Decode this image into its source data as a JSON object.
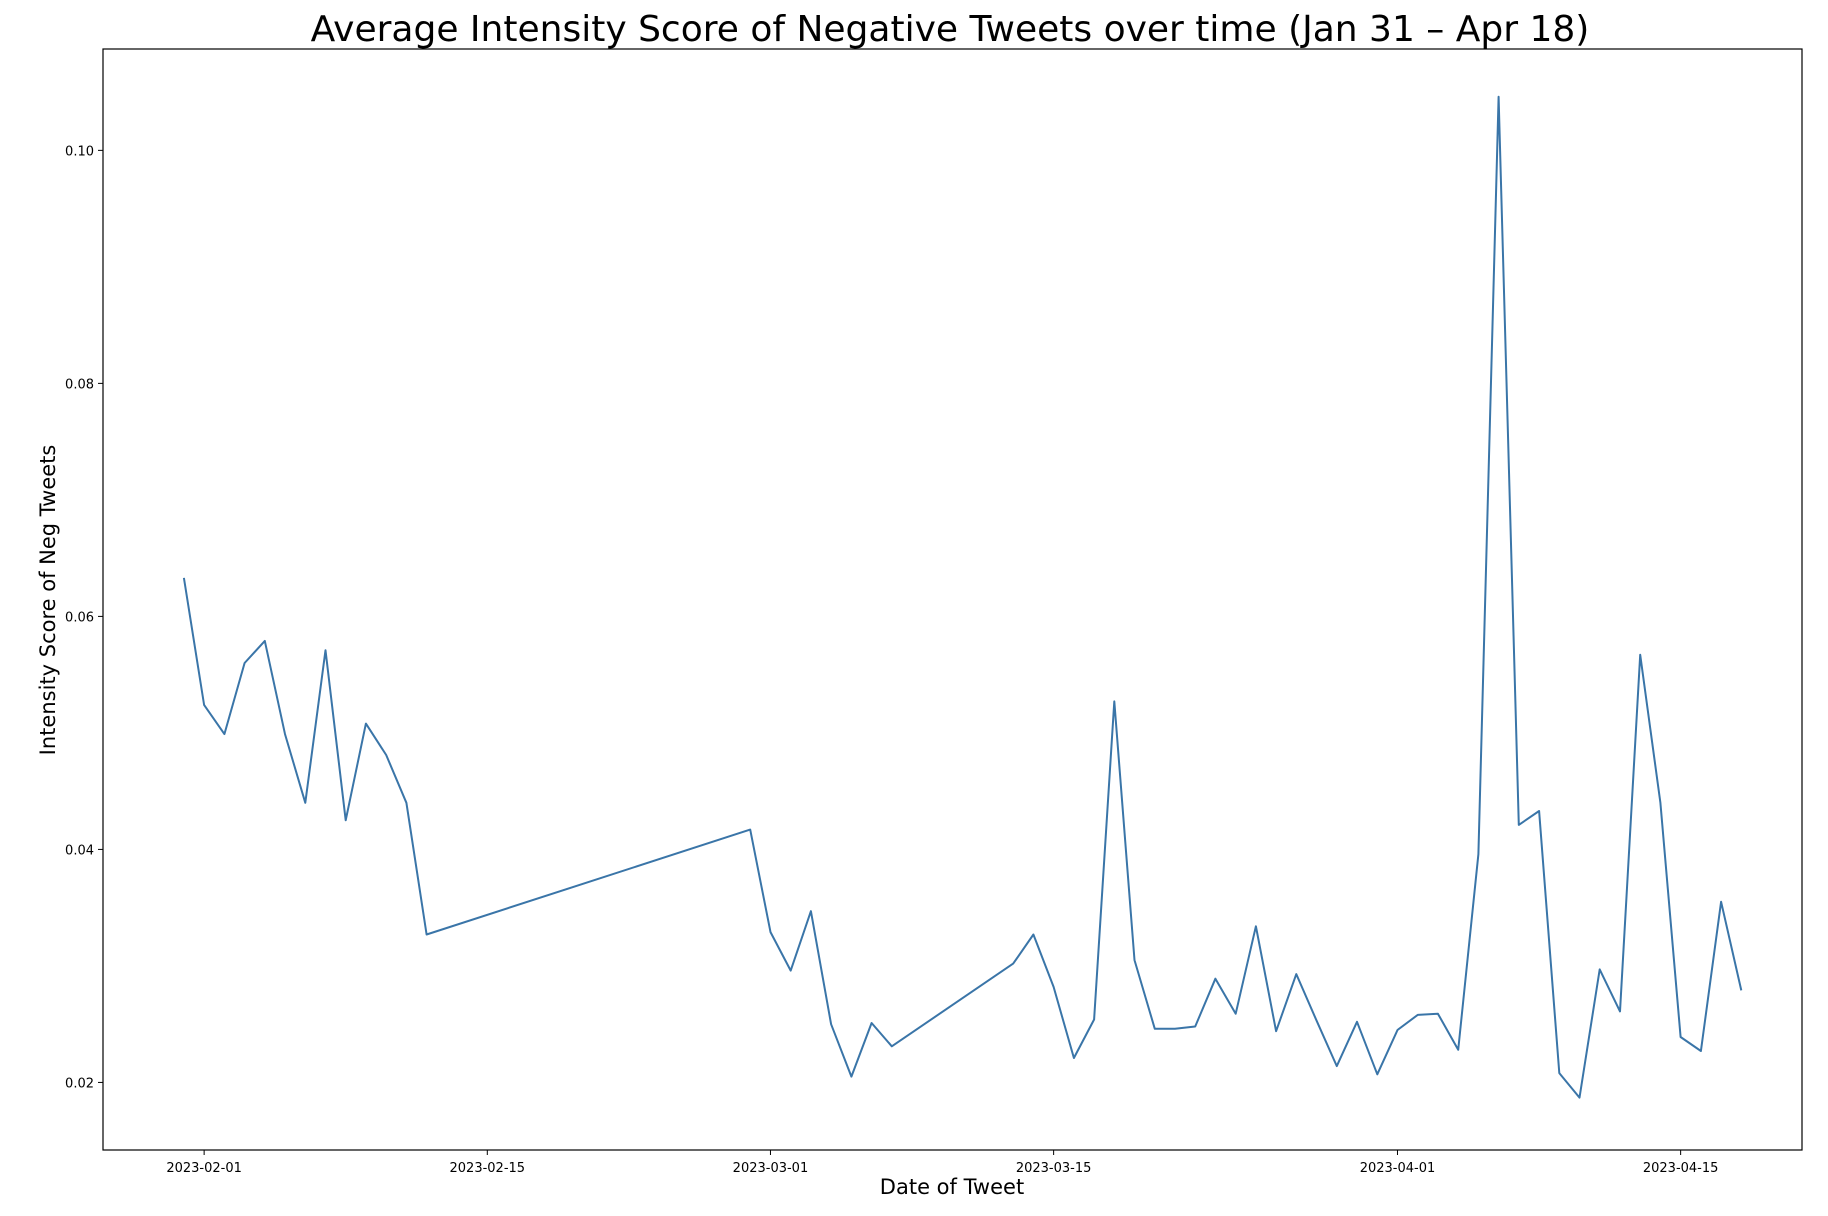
{
  "chart_data": {
    "type": "line",
    "title": "Average Intensity Score of Negative Tweets over time (Jan 31 – Apr 18)",
    "xlabel": "Date of Tweet",
    "ylabel": "Intensity Score of Neg Tweets",
    "xlim": [
      "2023-01-27",
      "2023-04-21"
    ],
    "ylim": [
      0.0142,
      0.1087
    ],
    "x_ticks": [
      "2023-02-01",
      "2023-02-15",
      "2023-03-01",
      "2023-03-15",
      "2023-04-01",
      "2023-04-15"
    ],
    "y_ticks": [
      0.02,
      0.04,
      0.06,
      0.08,
      0.1
    ],
    "y_tick_labels": [
      "0.02",
      "0.04",
      "0.06",
      "0.08",
      "0.10"
    ],
    "grid": false,
    "series_color": "#3a75a8",
    "series": [
      {
        "x": [
          "2023-01-31",
          "2023-02-01",
          "2023-02-02",
          "2023-02-03",
          "2023-02-04",
          "2023-02-05",
          "2023-02-06",
          "2023-02-07",
          "2023-02-08",
          "2023-02-09",
          "2023-02-10",
          "2023-02-11",
          "2023-02-12",
          "2023-02-28",
          "2023-03-01",
          "2023-03-02",
          "2023-03-03",
          "2023-03-04",
          "2023-03-05",
          "2023-03-06",
          "2023-03-07",
          "2023-03-13",
          "2023-03-14",
          "2023-03-15",
          "2023-03-16",
          "2023-03-17",
          "2023-03-18",
          "2023-03-19",
          "2023-03-20",
          "2023-03-21",
          "2023-03-22",
          "2023-03-23",
          "2023-03-24",
          "2023-03-25",
          "2023-03-26",
          "2023-03-27",
          "2023-03-28",
          "2023-03-29",
          "2023-03-30",
          "2023-03-31",
          "2023-04-01",
          "2023-04-02",
          "2023-04-03",
          "2023-04-04",
          "2023-04-05",
          "2023-04-06",
          "2023-04-07",
          "2023-04-08",
          "2023-04-09",
          "2023-04-10",
          "2023-04-11",
          "2023-04-12",
          "2023-04-13",
          "2023-04-14",
          "2023-04-15",
          "2023-04-16",
          "2023-04-17",
          "2023-04-18"
        ],
        "values": [
          0.0633,
          0.0524,
          0.0499,
          0.056,
          0.0579,
          0.0499,
          0.044,
          0.0571,
          0.0425,
          0.0508,
          0.0481,
          0.044,
          0.0327,
          0.0417,
          0.0329,
          0.0296,
          0.0347,
          0.025,
          0.0205,
          0.0251,
          0.0231,
          0.0302,
          0.0327,
          0.0282,
          0.0221,
          0.0254,
          0.0527,
          0.0305,
          0.0246,
          0.0246,
          0.0248,
          0.0289,
          0.0259,
          0.0334,
          0.0244,
          0.0293,
          0.0253,
          0.0214,
          0.0252,
          0.0207,
          0.0245,
          0.0258,
          0.0259,
          0.0228,
          0.0396,
          0.1046,
          0.0421,
          0.0433,
          0.0208,
          0.0187,
          0.0297,
          0.0261,
          0.0567,
          0.044,
          0.0239,
          0.0227,
          0.0355,
          0.0279
        ]
      }
    ]
  }
}
